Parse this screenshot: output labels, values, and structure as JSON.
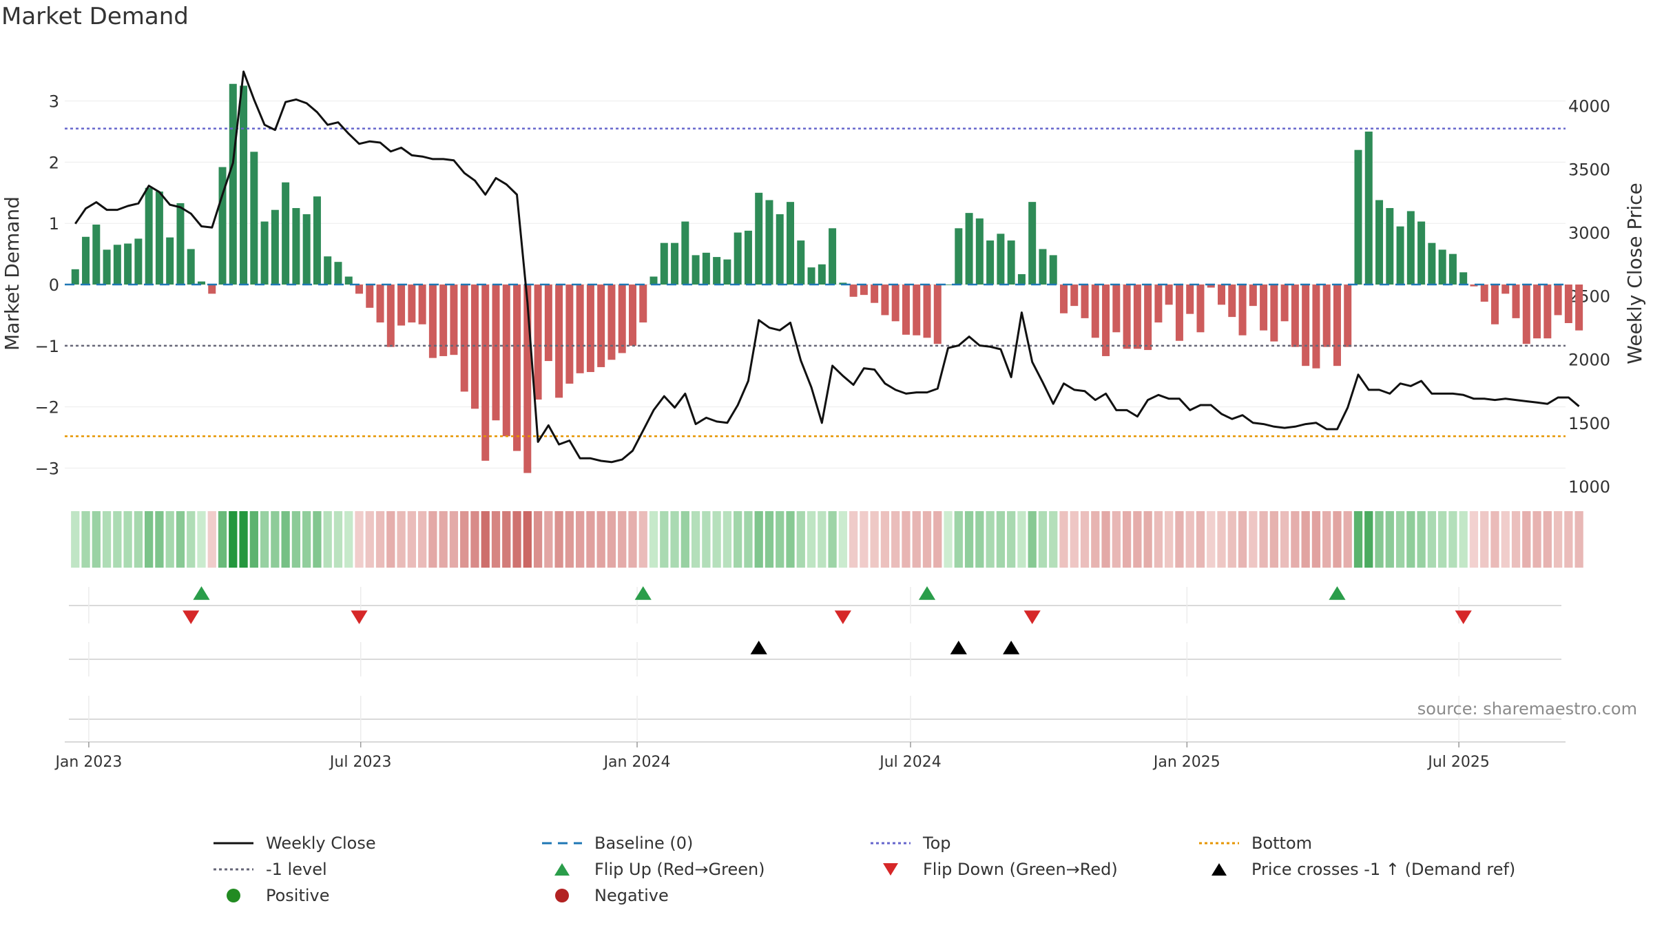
{
  "title": "Market Demand",
  "source": "source: sharemaestro.com",
  "colors": {
    "positive": "#2e8b57",
    "negative": "#cd5c5c",
    "price": "#111111",
    "baseline": "#1f77b4",
    "top": "#6666cc",
    "minus1": "#666677",
    "bottom": "#e69500",
    "flip_up": "#2a9d4a",
    "flip_down": "#d62728",
    "cross": "#000000"
  },
  "chart_data": {
    "type": "bar+line",
    "title": "Market Demand",
    "x_start": "2022-12-23",
    "x_step_days": 7,
    "xlim": [
      "2022-12-16",
      "2025-09-10"
    ],
    "x_ticks": [
      {
        "date": "2023-01-01",
        "label": "Jan 2023"
      },
      {
        "date": "2023-07-01",
        "label": "Jul 2023"
      },
      {
        "date": "2024-01-01",
        "label": "Jan 2024"
      },
      {
        "date": "2024-07-01",
        "label": "Jul 2024"
      },
      {
        "date": "2025-01-01",
        "label": "Jan 2025"
      },
      {
        "date": "2025-07-01",
        "label": "Jul 2025"
      }
    ],
    "ylabel_left": "Market Demand",
    "ylim_left": [
      -3.4,
      3.75
    ],
    "yticks_left": [
      3,
      2,
      1,
      0,
      -1,
      -2,
      -3
    ],
    "ylabel_right": "Weekly Close Price",
    "ylim_right": [
      950,
      4400
    ],
    "yticks_right": [
      4000,
      3500,
      3000,
      2500,
      2000,
      1500,
      1000
    ],
    "reference_lines": {
      "baseline": 0,
      "top": 2.55,
      "minus1": -1,
      "bottom": -2.48
    },
    "demand": [
      0.25,
      0.78,
      0.98,
      0.57,
      0.65,
      0.67,
      0.75,
      1.58,
      1.52,
      0.77,
      1.33,
      0.58,
      0.05,
      -0.15,
      1.92,
      3.28,
      3.25,
      2.17,
      1.03,
      1.22,
      1.67,
      1.25,
      1.15,
      1.44,
      0.46,
      0.37,
      0.13,
      -0.15,
      -0.38,
      -0.62,
      -1.02,
      -0.67,
      -0.62,
      -0.65,
      -1.2,
      -1.17,
      -1.15,
      -1.75,
      -2.03,
      -2.88,
      -2.22,
      -2.48,
      -2.72,
      -3.08,
      -1.88,
      -1.25,
      -1.85,
      -1.62,
      -1.45,
      -1.43,
      -1.35,
      -1.23,
      -1.12,
      -1.0,
      -0.62,
      0.13,
      0.68,
      0.68,
      1.03,
      0.48,
      0.52,
      0.45,
      0.41,
      0.85,
      0.88,
      1.5,
      1.38,
      1.15,
      1.35,
      0.72,
      0.28,
      0.33,
      0.92,
      0.03,
      -0.2,
      -0.17,
      -0.3,
      -0.5,
      -0.6,
      -0.82,
      -0.83,
      -0.87,
      -0.97,
      0.0,
      0.92,
      1.17,
      1.08,
      0.72,
      0.83,
      0.72,
      0.17,
      1.35,
      0.58,
      0.48,
      -0.47,
      -0.35,
      -0.55,
      -0.87,
      -1.17,
      -0.78,
      -1.05,
      -1.05,
      -1.07,
      -0.62,
      -0.33,
      -0.92,
      -0.48,
      -0.78,
      -0.05,
      -0.33,
      -0.53,
      -0.83,
      -0.35,
      -0.75,
      -0.93,
      -0.6,
      -1.02,
      -1.33,
      -1.37,
      -1.02,
      -1.33,
      -1.02,
      2.2,
      2.5,
      1.38,
      1.25,
      0.95,
      1.2,
      1.03,
      0.68,
      0.57,
      0.5,
      0.2,
      -0.03,
      -0.28,
      -0.65,
      -0.15,
      -0.55,
      -0.97,
      -0.88,
      -0.88,
      -0.5,
      -0.63,
      -0.75
    ],
    "price": [
      3070,
      3190,
      3240,
      3180,
      3180,
      3210,
      3230,
      3370,
      3320,
      3220,
      3200,
      3150,
      3050,
      3040,
      3300,
      3550,
      4270,
      4050,
      3850,
      3810,
      4030,
      4050,
      4020,
      3950,
      3850,
      3870,
      3780,
      3700,
      3720,
      3710,
      3640,
      3670,
      3610,
      3600,
      3580,
      3580,
      3570,
      3470,
      3410,
      3300,
      3430,
      3380,
      3300,
      2450,
      1350,
      1480,
      1330,
      1360,
      1220,
      1220,
      1200,
      1190,
      1210,
      1280,
      1440,
      1600,
      1710,
      1620,
      1730,
      1490,
      1540,
      1510,
      1500,
      1640,
      1830,
      2310,
      2250,
      2230,
      2290,
      1990,
      1780,
      1500,
      1950,
      1870,
      1800,
      1930,
      1920,
      1810,
      1760,
      1730,
      1740,
      1740,
      1770,
      2090,
      2110,
      2180,
      2110,
      2100,
      2080,
      1860,
      2370,
      1980,
      1820,
      1650,
      1810,
      1760,
      1750,
      1680,
      1730,
      1600,
      1600,
      1550,
      1680,
      1720,
      1690,
      1690,
      1600,
      1640,
      1640,
      1570,
      1530,
      1560,
      1500,
      1490,
      1470,
      1460,
      1470,
      1490,
      1500,
      1450,
      1450,
      1620,
      1880,
      1760,
      1760,
      1730,
      1810,
      1790,
      1830,
      1730,
      1730,
      1730,
      1720,
      1690,
      1690,
      1680,
      1690,
      1680,
      1670,
      1660,
      1650,
      1700,
      1700,
      1630
    ],
    "flip_up_dates": [
      "2023-03-17",
      "2024-01-05",
      "2024-07-12",
      "2025-04-11"
    ],
    "flip_down_dates": [
      "2023-03-10",
      "2023-06-30",
      "2024-05-17",
      "2024-09-20",
      "2025-07-04"
    ],
    "price_cross_dates": [
      "2024-03-22",
      "2024-08-02",
      "2024-09-06"
    ]
  },
  "legend": [
    {
      "key": "weekly-close",
      "label": "Weekly Close",
      "symbol": "line",
      "color": "#111111"
    },
    {
      "key": "baseline",
      "label": "Baseline (0)",
      "symbol": "dashed",
      "color": "#1f77b4"
    },
    {
      "key": "top",
      "label": "Top",
      "symbol": "dotted",
      "color": "#6666cc"
    },
    {
      "key": "bottom",
      "label": "Bottom",
      "symbol": "dotted",
      "color": "#e69500"
    },
    {
      "key": "minus1-level",
      "label": "-1 level",
      "symbol": "dotted",
      "color": "#666677"
    },
    {
      "key": "flip-up",
      "label": "Flip Up (Red→Green)",
      "symbol": "tri-up",
      "color": "#2a9d4a"
    },
    {
      "key": "flip-down",
      "label": "Flip Down (Green→Red)",
      "symbol": "tri-down",
      "color": "#d62728"
    },
    {
      "key": "price-cross",
      "label": "Price crosses -1 ↑ (Demand ref)",
      "symbol": "tri-up",
      "color": "#000000"
    },
    {
      "key": "positive",
      "label": "Positive",
      "symbol": "dot",
      "color": "#228b22"
    },
    {
      "key": "negative",
      "label": "Negative",
      "symbol": "dot",
      "color": "#b22222"
    }
  ]
}
